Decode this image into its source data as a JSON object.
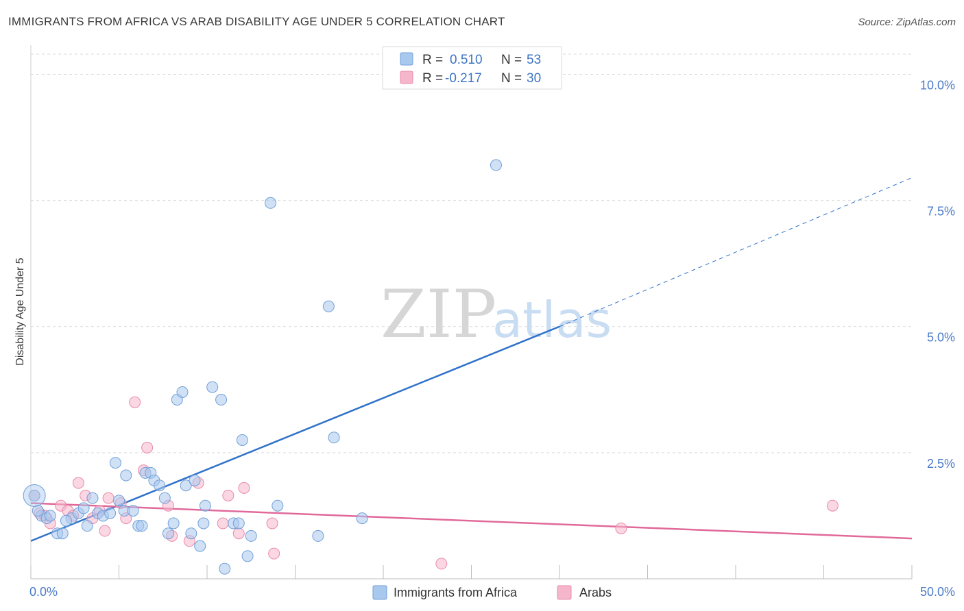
{
  "title": "IMMIGRANTS FROM AFRICA VS ARAB DISABILITY AGE UNDER 5 CORRELATION CHART",
  "source": "Source: ZipAtlas.com",
  "watermark": {
    "zip": "ZIP",
    "atlas": "atlas"
  },
  "legend": {
    "rows": [
      {
        "r_label": "R =",
        "r_value": "0.510",
        "n_label": "N =",
        "n_value": "53",
        "color": "#a9c8ee"
      },
      {
        "r_label": "R =",
        "r_value": "-0.217",
        "n_label": "N =",
        "n_value": "30",
        "color": "#f5b6cb"
      }
    ]
  },
  "bottom_legend": [
    "Immigrants from Africa",
    "Arabs"
  ],
  "chart_data": {
    "type": "scatter",
    "title": "IMMIGRANTS FROM AFRICA VS ARAB DISABILITY AGE UNDER 5 CORRELATION CHART",
    "xlabel": "",
    "ylabel": "Disability Age Under 5",
    "xlim": [
      0,
      50
    ],
    "ylim": [
      0,
      10.4
    ],
    "x_tick_labels": [
      "0.0%",
      "50.0%"
    ],
    "y_ticks": [
      2.5,
      5.0,
      7.5,
      10.0
    ],
    "y_tick_labels": [
      "2.5%",
      "5.0%",
      "7.5%",
      "10.0%"
    ],
    "grid": "horizontal dashed",
    "legend_position": "top-center",
    "series": [
      {
        "name": "Immigrants from Africa",
        "color": "#a9c8ee",
        "stroke": "#6f9fd8",
        "trend_color": "#2f72c9",
        "trend": {
          "x0": 0,
          "y0": 0.75,
          "x1": 30,
          "y1": 5.0,
          "x_ext": 50,
          "y_ext": 7.95
        },
        "points": [
          [
            0.2,
            1.65
          ],
          [
            0.6,
            1.25
          ],
          [
            0.9,
            1.2
          ],
          [
            1.1,
            1.25
          ],
          [
            1.5,
            0.9
          ],
          [
            1.8,
            0.9
          ],
          [
            2.3,
            1.2
          ],
          [
            2.7,
            1.3
          ],
          [
            3.0,
            1.4
          ],
          [
            3.2,
            1.05
          ],
          [
            3.5,
            1.6
          ],
          [
            3.8,
            1.3
          ],
          [
            4.1,
            1.25
          ],
          [
            4.5,
            1.3
          ],
          [
            4.8,
            2.3
          ],
          [
            5.0,
            1.55
          ],
          [
            5.3,
            1.35
          ],
          [
            5.4,
            2.05
          ],
          [
            5.8,
            1.35
          ],
          [
            6.1,
            1.05
          ],
          [
            6.3,
            1.05
          ],
          [
            6.5,
            2.1
          ],
          [
            6.8,
            2.1
          ],
          [
            7.0,
            1.95
          ],
          [
            7.3,
            1.85
          ],
          [
            7.6,
            1.6
          ],
          [
            7.8,
            0.9
          ],
          [
            8.1,
            1.1
          ],
          [
            8.3,
            3.55
          ],
          [
            8.6,
            3.7
          ],
          [
            8.8,
            1.85
          ],
          [
            9.1,
            0.9
          ],
          [
            9.3,
            1.95
          ],
          [
            9.6,
            0.65
          ],
          [
            9.8,
            1.1
          ],
          [
            9.9,
            1.45
          ],
          [
            10.3,
            3.8
          ],
          [
            10.8,
            3.55
          ],
          [
            11.0,
            0.2
          ],
          [
            11.5,
            1.1
          ],
          [
            11.8,
            1.1
          ],
          [
            12.0,
            2.75
          ],
          [
            12.3,
            0.45
          ],
          [
            12.5,
            0.85
          ],
          [
            13.6,
            7.45
          ],
          [
            14.0,
            1.45
          ],
          [
            16.3,
            0.85
          ],
          [
            16.9,
            5.4
          ],
          [
            17.2,
            2.8
          ],
          [
            18.8,
            1.2
          ],
          [
            26.4,
            8.2
          ],
          [
            0.4,
            1.35
          ],
          [
            2.0,
            1.15
          ]
        ]
      },
      {
        "name": "Arabs",
        "color": "#f5b6cb",
        "stroke": "#e98aa9",
        "trend_color": "#e0699a",
        "trend": {
          "x0": 0,
          "y0": 1.5,
          "x1": 50,
          "y1": 0.8
        },
        "points": [
          [
            0.2,
            1.65
          ],
          [
            0.5,
            1.3
          ],
          [
            0.8,
            1.25
          ],
          [
            1.1,
            1.1
          ],
          [
            1.7,
            1.45
          ],
          [
            2.1,
            1.35
          ],
          [
            2.4,
            1.25
          ],
          [
            2.7,
            1.9
          ],
          [
            3.1,
            1.65
          ],
          [
            3.5,
            1.2
          ],
          [
            3.9,
            1.35
          ],
          [
            4.2,
            0.95
          ],
          [
            4.4,
            1.6
          ],
          [
            5.1,
            1.5
          ],
          [
            5.4,
            1.2
          ],
          [
            5.9,
            3.5
          ],
          [
            6.4,
            2.15
          ],
          [
            6.6,
            2.6
          ],
          [
            7.8,
            1.45
          ],
          [
            8.0,
            0.85
          ],
          [
            9.0,
            0.75
          ],
          [
            9.5,
            1.9
          ],
          [
            10.9,
            1.1
          ],
          [
            11.2,
            1.65
          ],
          [
            11.8,
            0.9
          ],
          [
            12.1,
            1.8
          ],
          [
            13.7,
            1.1
          ],
          [
            13.8,
            0.5
          ],
          [
            23.3,
            0.3
          ],
          [
            33.5,
            1.0
          ]
        ]
      }
    ],
    "extra_arab_point": [
      45.5,
      1.45
    ]
  }
}
